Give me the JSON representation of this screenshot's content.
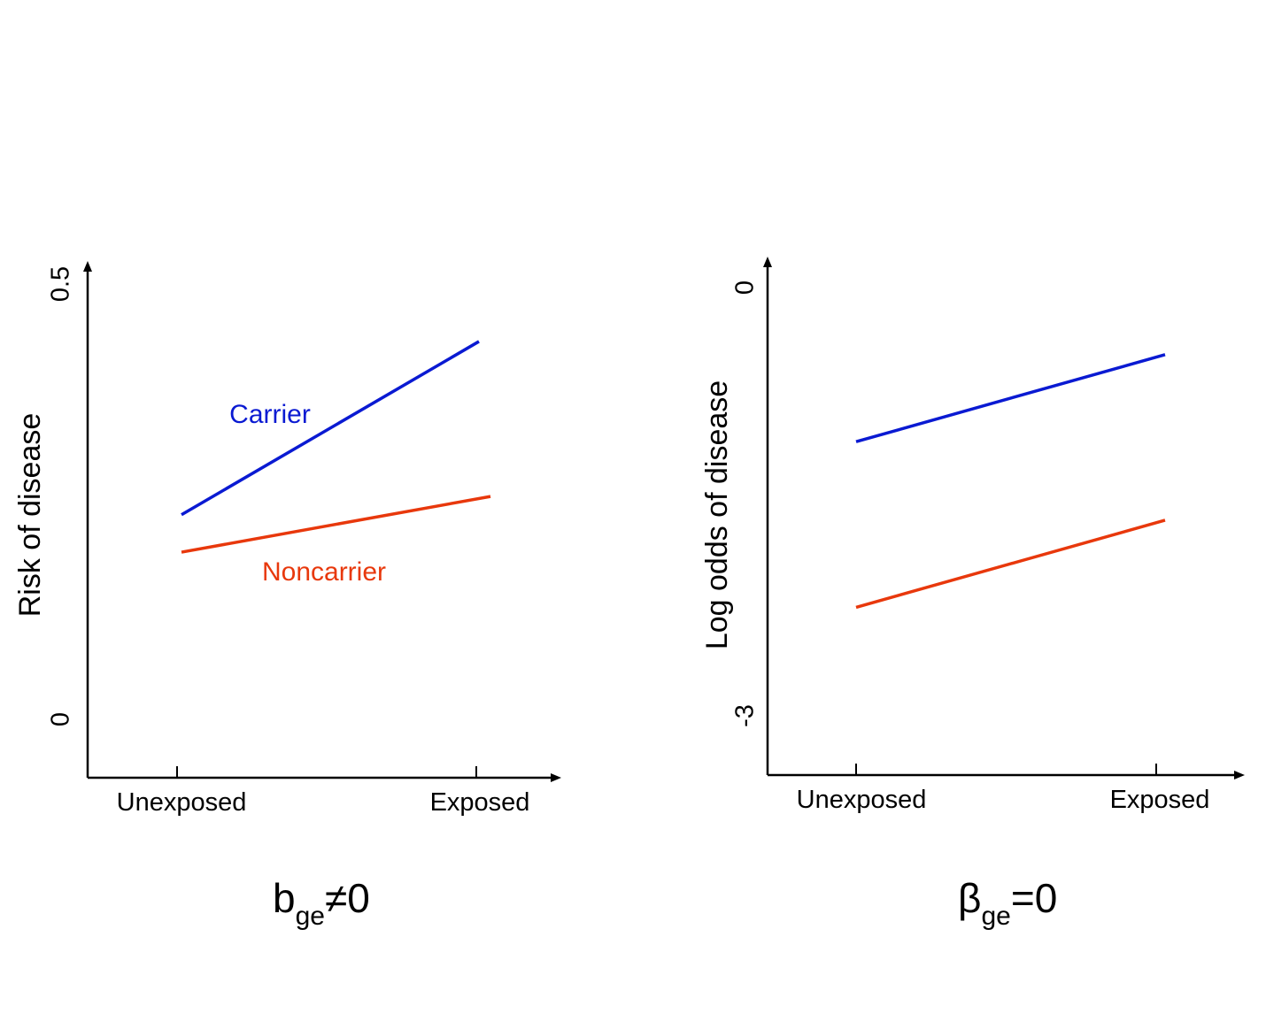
{
  "chart_data": [
    {
      "type": "line",
      "categories": [
        "Unexposed",
        "Exposed"
      ],
      "ylabel": "Risk of disease",
      "yticks": [
        "0",
        "0.5"
      ],
      "ylim": [
        0,
        0.5
      ],
      "grid": false,
      "series": [
        {
          "name": "Carrier",
          "color": "#0a1ad2",
          "values": [
            0.235,
            0.434
          ]
        },
        {
          "name": "Noncarrier",
          "color": "#e8380c",
          "values": [
            0.192,
            0.256
          ]
        }
      ],
      "caption": {
        "main": "b",
        "sub": "ge",
        "rest": "≠0"
      }
    },
    {
      "type": "line",
      "categories": [
        "Unexposed",
        "Exposed"
      ],
      "ylabel": "Log odds of disease",
      "yticks": [
        "-3",
        "0"
      ],
      "ylim": [
        -3,
        0
      ],
      "grid": false,
      "series": [
        {
          "color": "#0a1ad2",
          "values": [
            -1.08,
            -0.47
          ]
        },
        {
          "color": "#e8380c",
          "values": [
            -2.24,
            -1.63
          ]
        }
      ],
      "caption": {
        "main": "β",
        "sub": "ge",
        "rest": "=0"
      }
    }
  ]
}
